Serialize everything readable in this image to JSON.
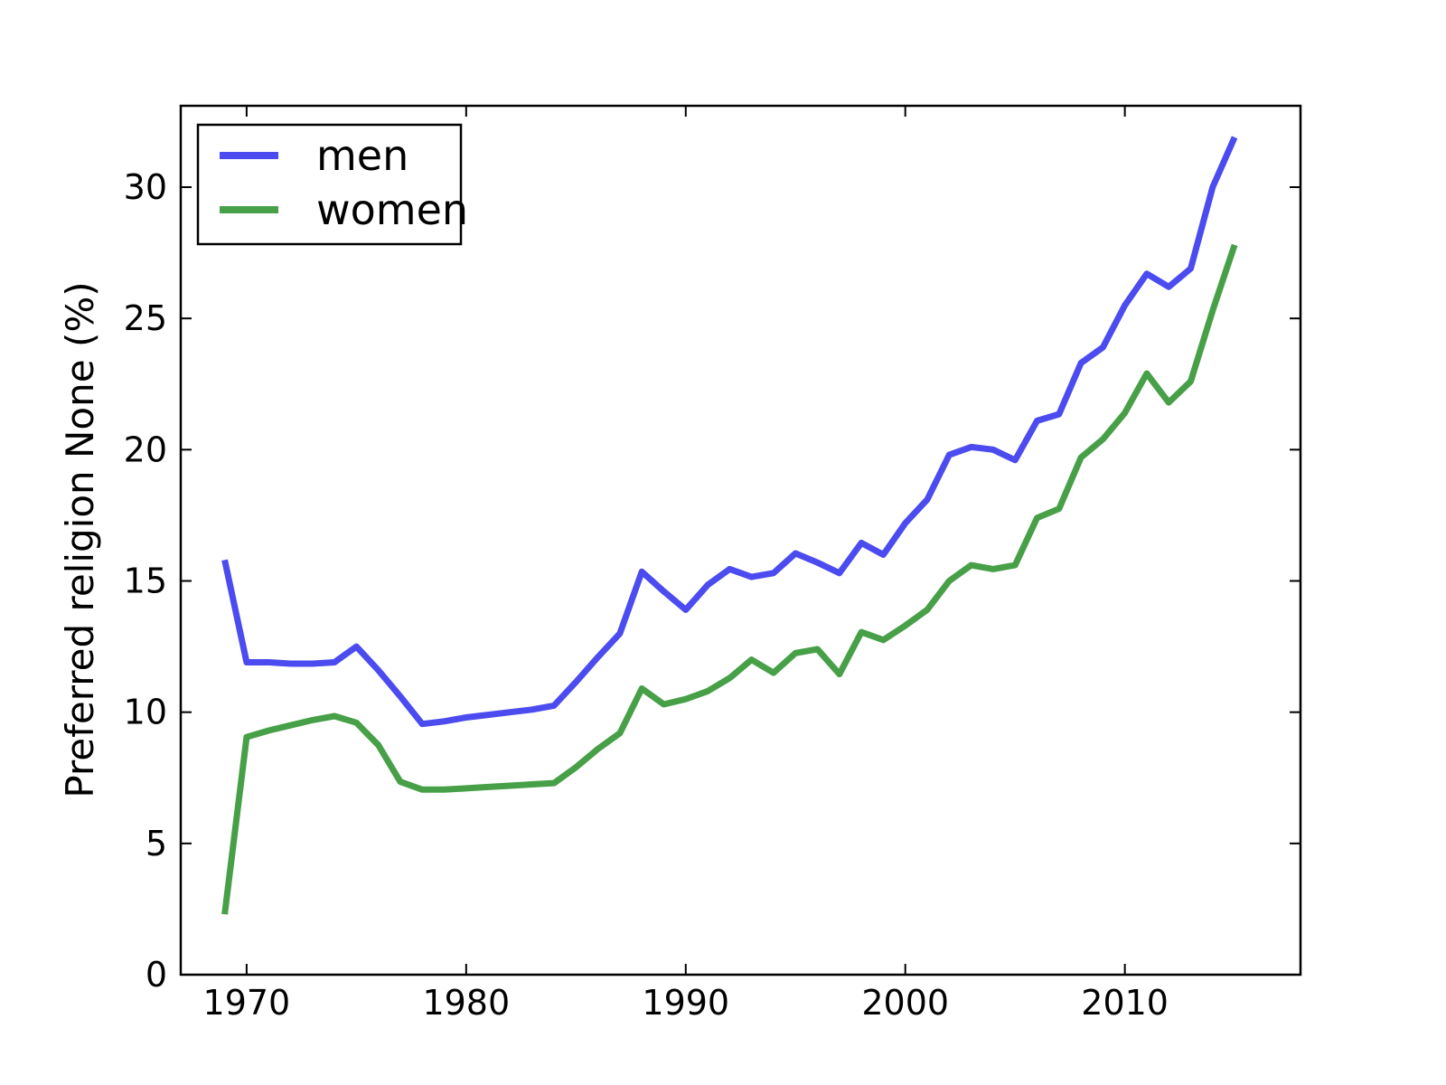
{
  "figure": {
    "background": "#ffffff",
    "plot_background": "#ffffff",
    "spine_color": "#000000",
    "tick_color": "#000000",
    "text_color": "#000000"
  },
  "legend": {
    "position": "upper left",
    "entries": [
      {
        "label": "men",
        "color": "#4b4bef"
      },
      {
        "label": "women",
        "color": "#47a047"
      }
    ]
  },
  "chart_data": {
    "type": "line",
    "title": "",
    "xlabel": "",
    "ylabel": "Preferred religion None (%)",
    "grid": false,
    "legend_position": "upper left",
    "xlim": [
      1967,
      2018
    ],
    "ylim": [
      0,
      33.1
    ],
    "xticks": [
      1970,
      1980,
      1990,
      2000,
      2010
    ],
    "yticks": [
      0,
      5,
      10,
      15,
      20,
      25,
      30
    ],
    "x": [
      1969,
      1970,
      1971,
      1972,
      1973,
      1974,
      1975,
      1976,
      1977,
      1978,
      1979,
      1980,
      1981,
      1982,
      1983,
      1984,
      1985,
      1986,
      1987,
      1988,
      1989,
      1990,
      1991,
      1992,
      1993,
      1994,
      1995,
      1996,
      1997,
      1998,
      1999,
      2000,
      2001,
      2002,
      2003,
      2004,
      2005,
      2006,
      2007,
      2008,
      2009,
      2010,
      2011,
      2012,
      2013,
      2014,
      2015
    ],
    "series": [
      {
        "name": "men",
        "color": "#4b4bef",
        "values": [
          15.8,
          11.9,
          11.9,
          11.85,
          11.85,
          11.9,
          12.5,
          11.6,
          10.6,
          9.55,
          9.65,
          9.8,
          9.9,
          10.0,
          10.1,
          10.25,
          11.15,
          12.1,
          13.0,
          15.35,
          14.6,
          13.9,
          14.85,
          15.45,
          15.15,
          15.3,
          16.05,
          15.7,
          15.3,
          16.45,
          16.0,
          17.2,
          18.1,
          19.8,
          20.1,
          20.0,
          19.6,
          21.1,
          21.35,
          23.3,
          23.9,
          25.5,
          26.7,
          26.2,
          26.9,
          30.0,
          31.9
        ]
      },
      {
        "name": "women",
        "color": "#47a047",
        "values": [
          2.3,
          9.05,
          9.3,
          9.5,
          9.7,
          9.85,
          9.6,
          8.75,
          7.35,
          7.05,
          7.05,
          7.1,
          7.15,
          7.2,
          7.25,
          7.3,
          7.9,
          8.6,
          9.2,
          10.9,
          10.3,
          10.5,
          10.8,
          11.3,
          12.0,
          11.5,
          12.25,
          12.4,
          11.45,
          13.05,
          12.75,
          13.3,
          13.9,
          15.0,
          15.6,
          15.45,
          15.6,
          17.4,
          17.75,
          19.7,
          20.4,
          21.4,
          22.9,
          21.8,
          22.6,
          25.3,
          27.8
        ]
      }
    ]
  }
}
